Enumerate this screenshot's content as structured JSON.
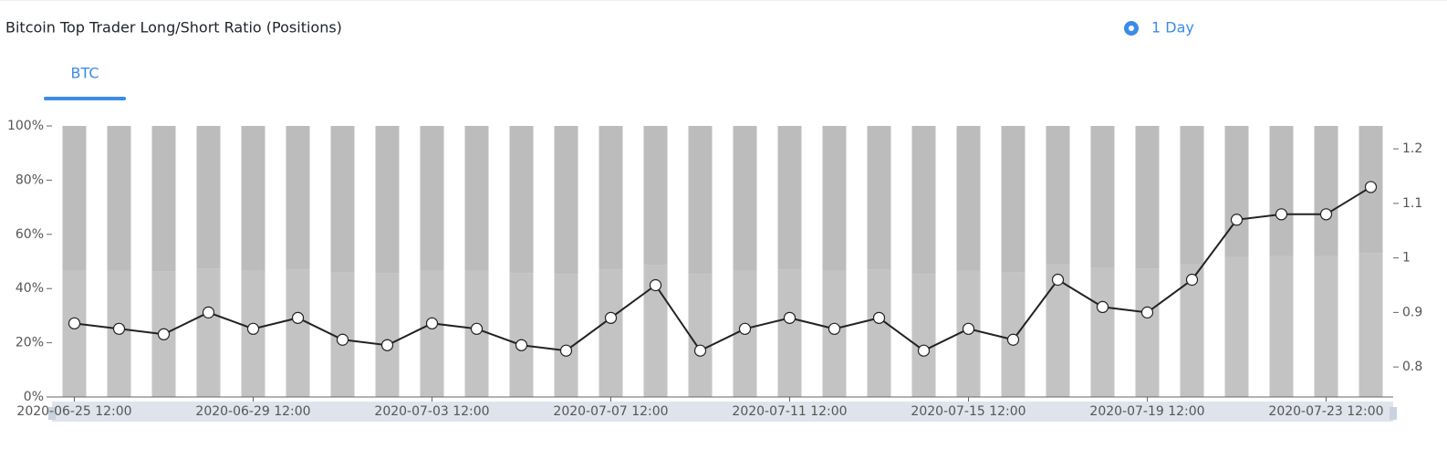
{
  "chart_data": {
    "type": "bar",
    "title": "Bitcoin Top Trader Long/Short Ratio (Positions)",
    "interval": "1 Day",
    "tab": "BTC",
    "categories": [
      "2020-06-25 12:00",
      null,
      null,
      null,
      "2020-06-29 12:00",
      null,
      null,
      null,
      "2020-07-03 12:00",
      null,
      null,
      null,
      "2020-07-07 12:00",
      null,
      null,
      null,
      "2020-07-11 12:00",
      null,
      null,
      null,
      "2020-07-15 12:00",
      null,
      null,
      null,
      "2020-07-19 12:00",
      null,
      null,
      null,
      "2020-07-23 12:00",
      null
    ],
    "series": [
      {
        "type": "bar",
        "color": "#c3c3c3",
        "values": [
          46.8,
          46.5,
          46.2,
          47.4,
          46.5,
          47.1,
          45.9,
          45.7,
          46.8,
          46.5,
          45.7,
          45.4,
          47.1,
          48.7,
          45.4,
          46.5,
          47.1,
          46.5,
          47.1,
          45.4,
          46.5,
          45.9,
          49.0,
          47.6,
          47.4,
          49.0,
          51.7,
          51.9,
          51.9,
          53.1
        ]
      },
      {
        "type": "bar",
        "color": "#bcbcbc",
        "values": [
          53.2,
          53.5,
          53.8,
          52.6,
          53.5,
          52.9,
          54.1,
          54.3,
          53.2,
          53.5,
          54.3,
          54.6,
          52.9,
          51.3,
          54.6,
          53.5,
          52.9,
          53.5,
          52.9,
          54.6,
          53.5,
          54.1,
          51.0,
          52.4,
          52.6,
          51.0,
          48.3,
          48.1,
          48.1,
          46.9
        ]
      },
      {
        "type": "line",
        "axis": "y2",
        "color": "#222222",
        "values": [
          0.88,
          0.87,
          0.86,
          0.9,
          0.87,
          0.89,
          0.85,
          0.84,
          0.88,
          0.87,
          0.84,
          0.83,
          0.89,
          0.95,
          0.83,
          0.87,
          0.89,
          0.87,
          0.89,
          0.83,
          0.87,
          0.85,
          0.96,
          0.91,
          0.9,
          0.96,
          1.07,
          1.08,
          1.08,
          1.13
        ]
      }
    ],
    "ylim": [
      0,
      100
    ],
    "yticks": [
      {
        "value": 0,
        "label": "0%"
      },
      {
        "value": 20,
        "label": "20%"
      },
      {
        "value": 40,
        "label": "40%"
      },
      {
        "value": 60,
        "label": "60%"
      },
      {
        "value": 80,
        "label": "80%"
      },
      {
        "value": 100,
        "label": "100%"
      }
    ],
    "y2lim": [
      0.745,
      1.242
    ],
    "y2ticks": [
      0.8,
      0.9,
      1,
      1.1,
      1.2
    ]
  }
}
